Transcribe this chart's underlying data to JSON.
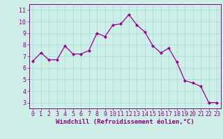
{
  "x": [
    0,
    1,
    2,
    3,
    4,
    5,
    6,
    7,
    8,
    9,
    10,
    11,
    12,
    13,
    14,
    15,
    16,
    17,
    18,
    19,
    20,
    21,
    22,
    23
  ],
  "y": [
    6.6,
    7.3,
    6.7,
    6.7,
    7.9,
    7.2,
    7.2,
    7.5,
    9.0,
    8.7,
    9.7,
    9.8,
    10.6,
    9.7,
    9.1,
    7.9,
    7.3,
    7.7,
    6.5,
    4.9,
    4.7,
    4.4,
    3.0,
    3.0
  ],
  "line_color": "#990099",
  "marker": "D",
  "markersize": 2.0,
  "linewidth": 0.9,
  "background_color": "#ceeee8",
  "grid_color": "#aadddd",
  "xlabel": "Windchill (Refroidissement éolien,°C)",
  "xlabel_fontsize": 6.5,
  "xlabel_color": "#880088",
  "ylabel_ticks": [
    3,
    4,
    5,
    6,
    7,
    8,
    9,
    10,
    11
  ],
  "xtick_labels": [
    "0",
    "1",
    "2",
    "3",
    "4",
    "5",
    "6",
    "7",
    "8",
    "9",
    "10",
    "11",
    "12",
    "13",
    "14",
    "15",
    "16",
    "17",
    "18",
    "19",
    "20",
    "21",
    "22",
    "23"
  ],
  "ylim": [
    2.5,
    11.5
  ],
  "xlim": [
    -0.5,
    23.5
  ],
  "tick_color": "#880088",
  "tick_fontsize": 6.0,
  "spine_color": "#880088"
}
